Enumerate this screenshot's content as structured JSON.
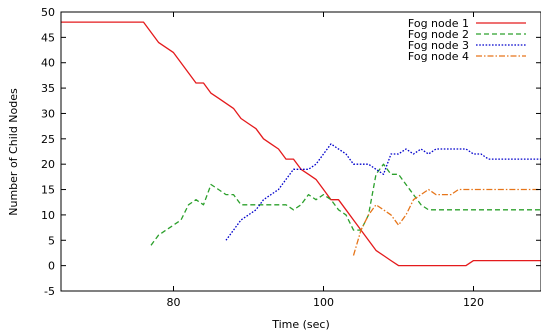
{
  "chart_data": {
    "type": "line",
    "title": "",
    "xlabel": "Time (sec)",
    "ylabel": "Number of Child Nodes",
    "xlim": [
      65,
      129
    ],
    "ylim": [
      -5,
      50
    ],
    "xticks": [
      80,
      100,
      120
    ],
    "yticks": [
      -5,
      0,
      5,
      10,
      15,
      20,
      25,
      30,
      35,
      40,
      45,
      50
    ],
    "grid": false,
    "legend_position": "top-right",
    "series": [
      {
        "name": "Fog node 1",
        "color": "#e41a1c",
        "dash": "solid",
        "x": [
          65,
          76,
          78,
          80,
          82,
          83,
          84,
          85,
          86,
          87,
          88,
          89,
          90,
          91,
          92,
          93,
          94,
          95,
          96,
          97,
          98,
          99,
          100,
          101,
          102,
          103,
          104,
          105,
          106,
          107,
          108,
          109,
          110,
          111,
          112,
          113,
          114,
          115,
          116,
          117,
          118,
          119,
          120,
          121,
          122,
          123,
          124,
          125,
          126,
          127,
          128,
          129
        ],
        "y": [
          48,
          48,
          44,
          42,
          38,
          36,
          36,
          34,
          33,
          32,
          31,
          29,
          28,
          27,
          25,
          24,
          23,
          21,
          21,
          19,
          18,
          17,
          15,
          13,
          13,
          11,
          9,
          7,
          5,
          3,
          2,
          1,
          0,
          0,
          0,
          0,
          0,
          0,
          0,
          0,
          0,
          0,
          1,
          1,
          1,
          1,
          1,
          1,
          1,
          1,
          1,
          1
        ]
      },
      {
        "name": "Fog node 2",
        "color": "#2ca02c",
        "dash": "dashed",
        "x": [
          77,
          78,
          79,
          80,
          81,
          82,
          83,
          84,
          85,
          86,
          87,
          88,
          89,
          90,
          91,
          92,
          93,
          94,
          95,
          96,
          97,
          98,
          99,
          100,
          101,
          102,
          103,
          104,
          105,
          106,
          107,
          108,
          109,
          110,
          111,
          112,
          113,
          114,
          115,
          116,
          117,
          118,
          119,
          120,
          121,
          122,
          123,
          124,
          125,
          126,
          127,
          128,
          129
        ],
        "y": [
          4,
          6,
          7,
          8,
          9,
          12,
          13,
          12,
          16,
          15,
          14,
          14,
          12,
          12,
          12,
          12,
          12,
          12,
          12,
          11,
          12,
          14,
          13,
          14,
          13,
          11,
          10,
          7,
          7,
          10,
          18,
          20,
          18,
          18,
          16,
          14,
          12,
          11,
          11,
          11,
          11,
          11,
          11,
          11,
          11,
          11,
          11,
          11,
          11,
          11,
          11,
          11,
          11
        ]
      },
      {
        "name": "Fog node 3",
        "color": "#0000cc",
        "dash": "dotted",
        "x": [
          87,
          88,
          89,
          90,
          91,
          92,
          93,
          94,
          95,
          96,
          97,
          98,
          99,
          100,
          101,
          102,
          103,
          104,
          105,
          106,
          107,
          108,
          109,
          110,
          111,
          112,
          113,
          114,
          115,
          116,
          117,
          118,
          119,
          120,
          121,
          122,
          123,
          124,
          125,
          126,
          127,
          128,
          129
        ],
        "y": [
          5,
          7,
          9,
          10,
          11,
          13,
          14,
          15,
          17,
          19,
          19,
          19,
          20,
          22,
          24,
          23,
          22,
          20,
          20,
          20,
          19,
          18,
          22,
          22,
          23,
          22,
          23,
          22,
          23,
          23,
          23,
          23,
          23,
          22,
          22,
          21,
          21,
          21,
          21,
          21,
          21,
          21,
          21
        ]
      },
      {
        "name": "Fog node 4",
        "color": "#e6751a",
        "dash": "dashdot",
        "x": [
          104,
          105,
          106,
          107,
          108,
          109,
          110,
          111,
          112,
          113,
          114,
          115,
          116,
          117,
          118,
          119,
          120,
          121,
          122,
          123,
          124,
          125,
          126,
          127,
          128,
          129
        ],
        "y": [
          2,
          7,
          10,
          12,
          11,
          10,
          8,
          10,
          13,
          14,
          15,
          14,
          14,
          14,
          15,
          15,
          15,
          15,
          15,
          15,
          15,
          15,
          15,
          15,
          15,
          15
        ]
      }
    ]
  }
}
